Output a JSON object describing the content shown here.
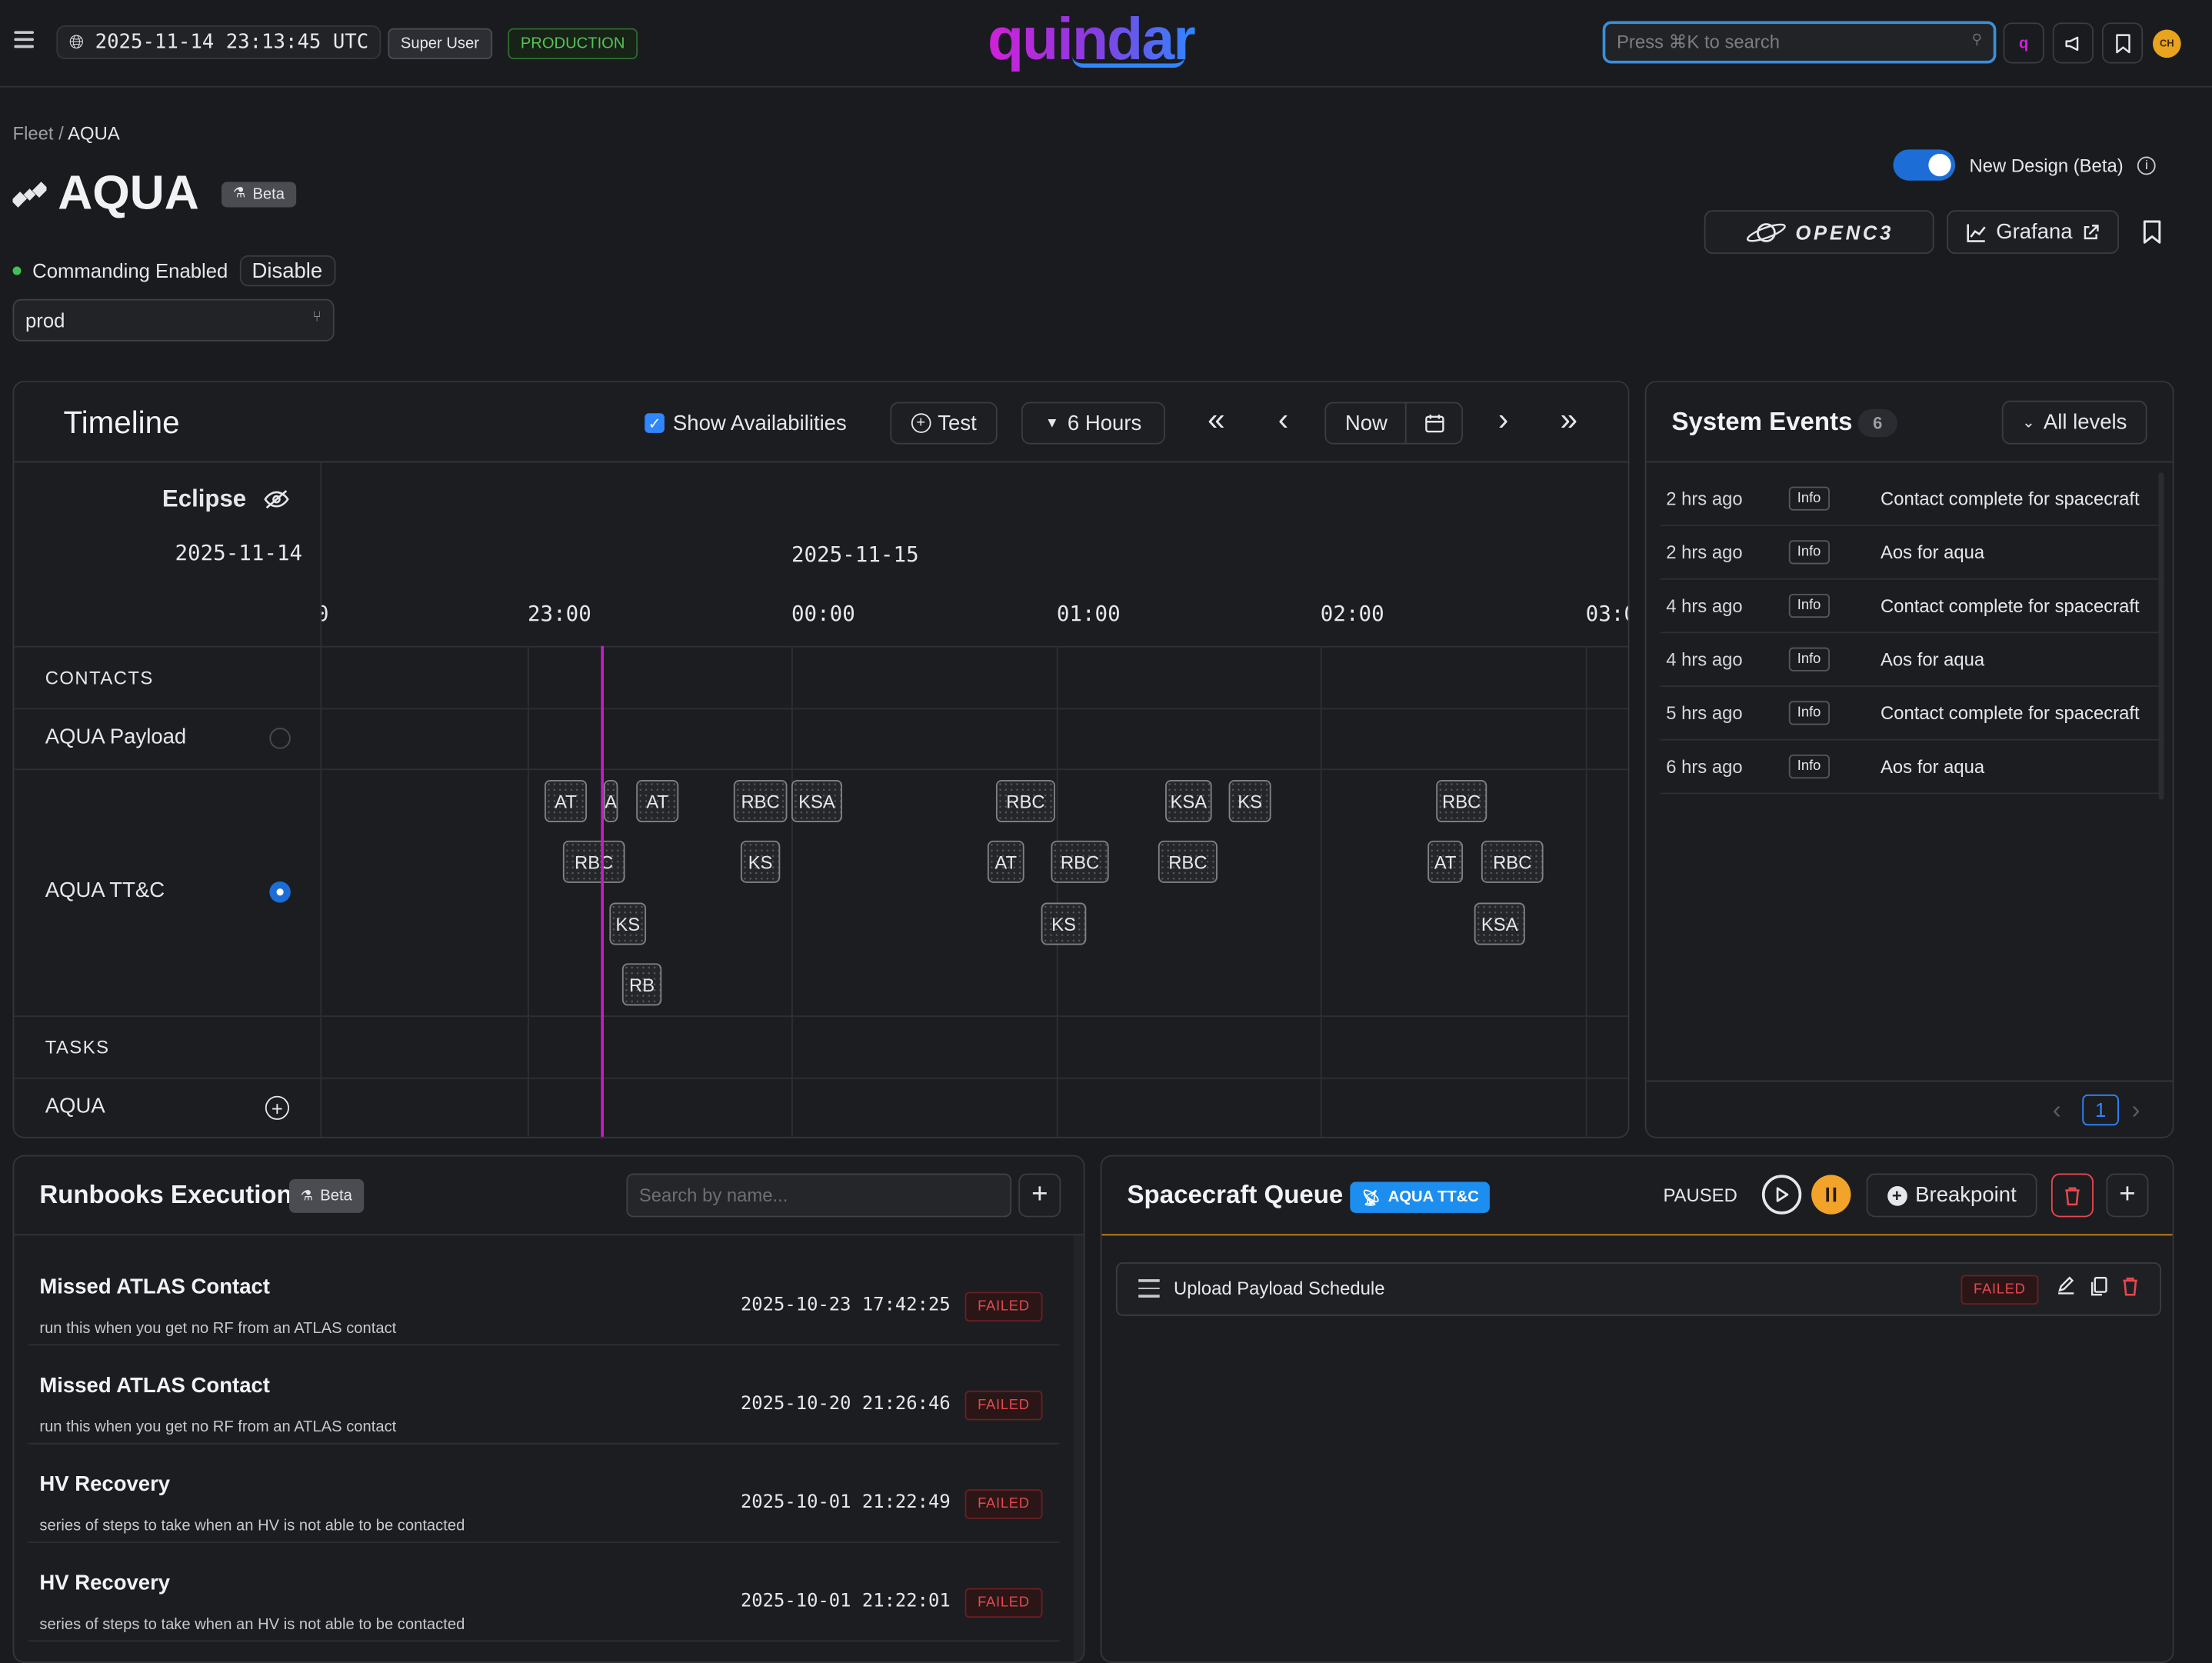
{
  "topbar": {
    "clock": "2025-11-14 23:13:45 UTC",
    "role_badge": "Super User",
    "env_badge": "PRODUCTION",
    "logo_text": "quindar",
    "search_placeholder": "Press ⌘K to search",
    "avatar_initials": "CH",
    "colors": {
      "accent": "#3a8fd8",
      "env": "#58c25a",
      "avatar": "#e8a31f"
    }
  },
  "header": {
    "breadcrumb_root": "Fleet",
    "breadcrumb_sep": "/",
    "breadcrumb_current": "AQUA",
    "title": "AQUA",
    "beta_label": "Beta",
    "commanding_status": "Commanding Enabled",
    "disable_label": "Disable",
    "environment_value": "prod",
    "new_design_label": "New Design (Beta)",
    "new_design_enabled": true,
    "openc3_label": "OPENC3",
    "grafana_label": "Grafana"
  },
  "timeline": {
    "title": "Timeline",
    "show_availabilities_label": "Show Availabilities",
    "show_availabilities_checked": true,
    "test_label": "Test",
    "range_label": "6 Hours",
    "now_label": "Now",
    "eclipse_label": "Eclipse",
    "date_left": "2025-11-14",
    "date_right": "2025-11-15",
    "ticks": [
      "0",
      "23:00",
      "00:00",
      "01:00",
      "02:00",
      "03:0"
    ],
    "sections": {
      "contacts": "CONTACTS",
      "tasks": "TASKS"
    },
    "rows": {
      "payload": "AQUA Payload",
      "ttc": "AQUA TT&C",
      "task_row": "AQUA"
    },
    "contacts": [
      "AT",
      "A",
      "AT",
      "RBC",
      "KSA",
      "RBC",
      "KSA",
      "KS",
      "RBC",
      "RBC",
      "KS",
      "AT",
      "RBC",
      "RBC",
      "AT",
      "RBC",
      "KS",
      "KS",
      "KSA",
      "RB"
    ],
    "now_line_color": "#c41ec6"
  },
  "events": {
    "title": "System Events",
    "count": "6",
    "filter_label": "All levels",
    "items": [
      {
        "time": "2 hrs ago",
        "level": "Info",
        "message": "Contact complete for spacecraft"
      },
      {
        "time": "2 hrs ago",
        "level": "Info",
        "message": "Aos for aqua"
      },
      {
        "time": "4 hrs ago",
        "level": "Info",
        "message": "Contact complete for spacecraft"
      },
      {
        "time": "4 hrs ago",
        "level": "Info",
        "message": "Aos for aqua"
      },
      {
        "time": "5 hrs ago",
        "level": "Info",
        "message": "Contact complete for spacecraft"
      },
      {
        "time": "6 hrs ago",
        "level": "Info",
        "message": "Aos for aqua"
      }
    ],
    "page": "1"
  },
  "runbooks": {
    "title": "Runbooks Execution",
    "beta_label": "Beta",
    "search_placeholder": "Search by name...",
    "items": [
      {
        "title": "Missed ATLAS Contact",
        "desc": "run this when you get no RF from an ATLAS contact",
        "date": "2025-10-23 17:42:25",
        "status": "FAILED"
      },
      {
        "title": "Missed ATLAS Contact",
        "desc": "run this when you get no RF from an ATLAS contact",
        "date": "2025-10-20 21:26:46",
        "status": "FAILED"
      },
      {
        "title": "HV Recovery",
        "desc": "series of steps to take when an HV is not able to be contacted",
        "date": "2025-10-01 21:22:49",
        "status": "FAILED"
      },
      {
        "title": "HV Recovery",
        "desc": "series of steps to take when an HV is not able to be contacted",
        "date": "2025-10-01 21:22:01",
        "status": "FAILED"
      }
    ]
  },
  "queue": {
    "title": "Spacecraft Queue",
    "badge": "AQUA TT&C",
    "state": "PAUSED",
    "breakpoint_label": "Breakpoint",
    "items": [
      {
        "name": "Upload Payload Schedule",
        "status": "FAILED"
      }
    ],
    "colors": {
      "badge": "#1c8ef0",
      "pause": "#f2a32a"
    }
  }
}
